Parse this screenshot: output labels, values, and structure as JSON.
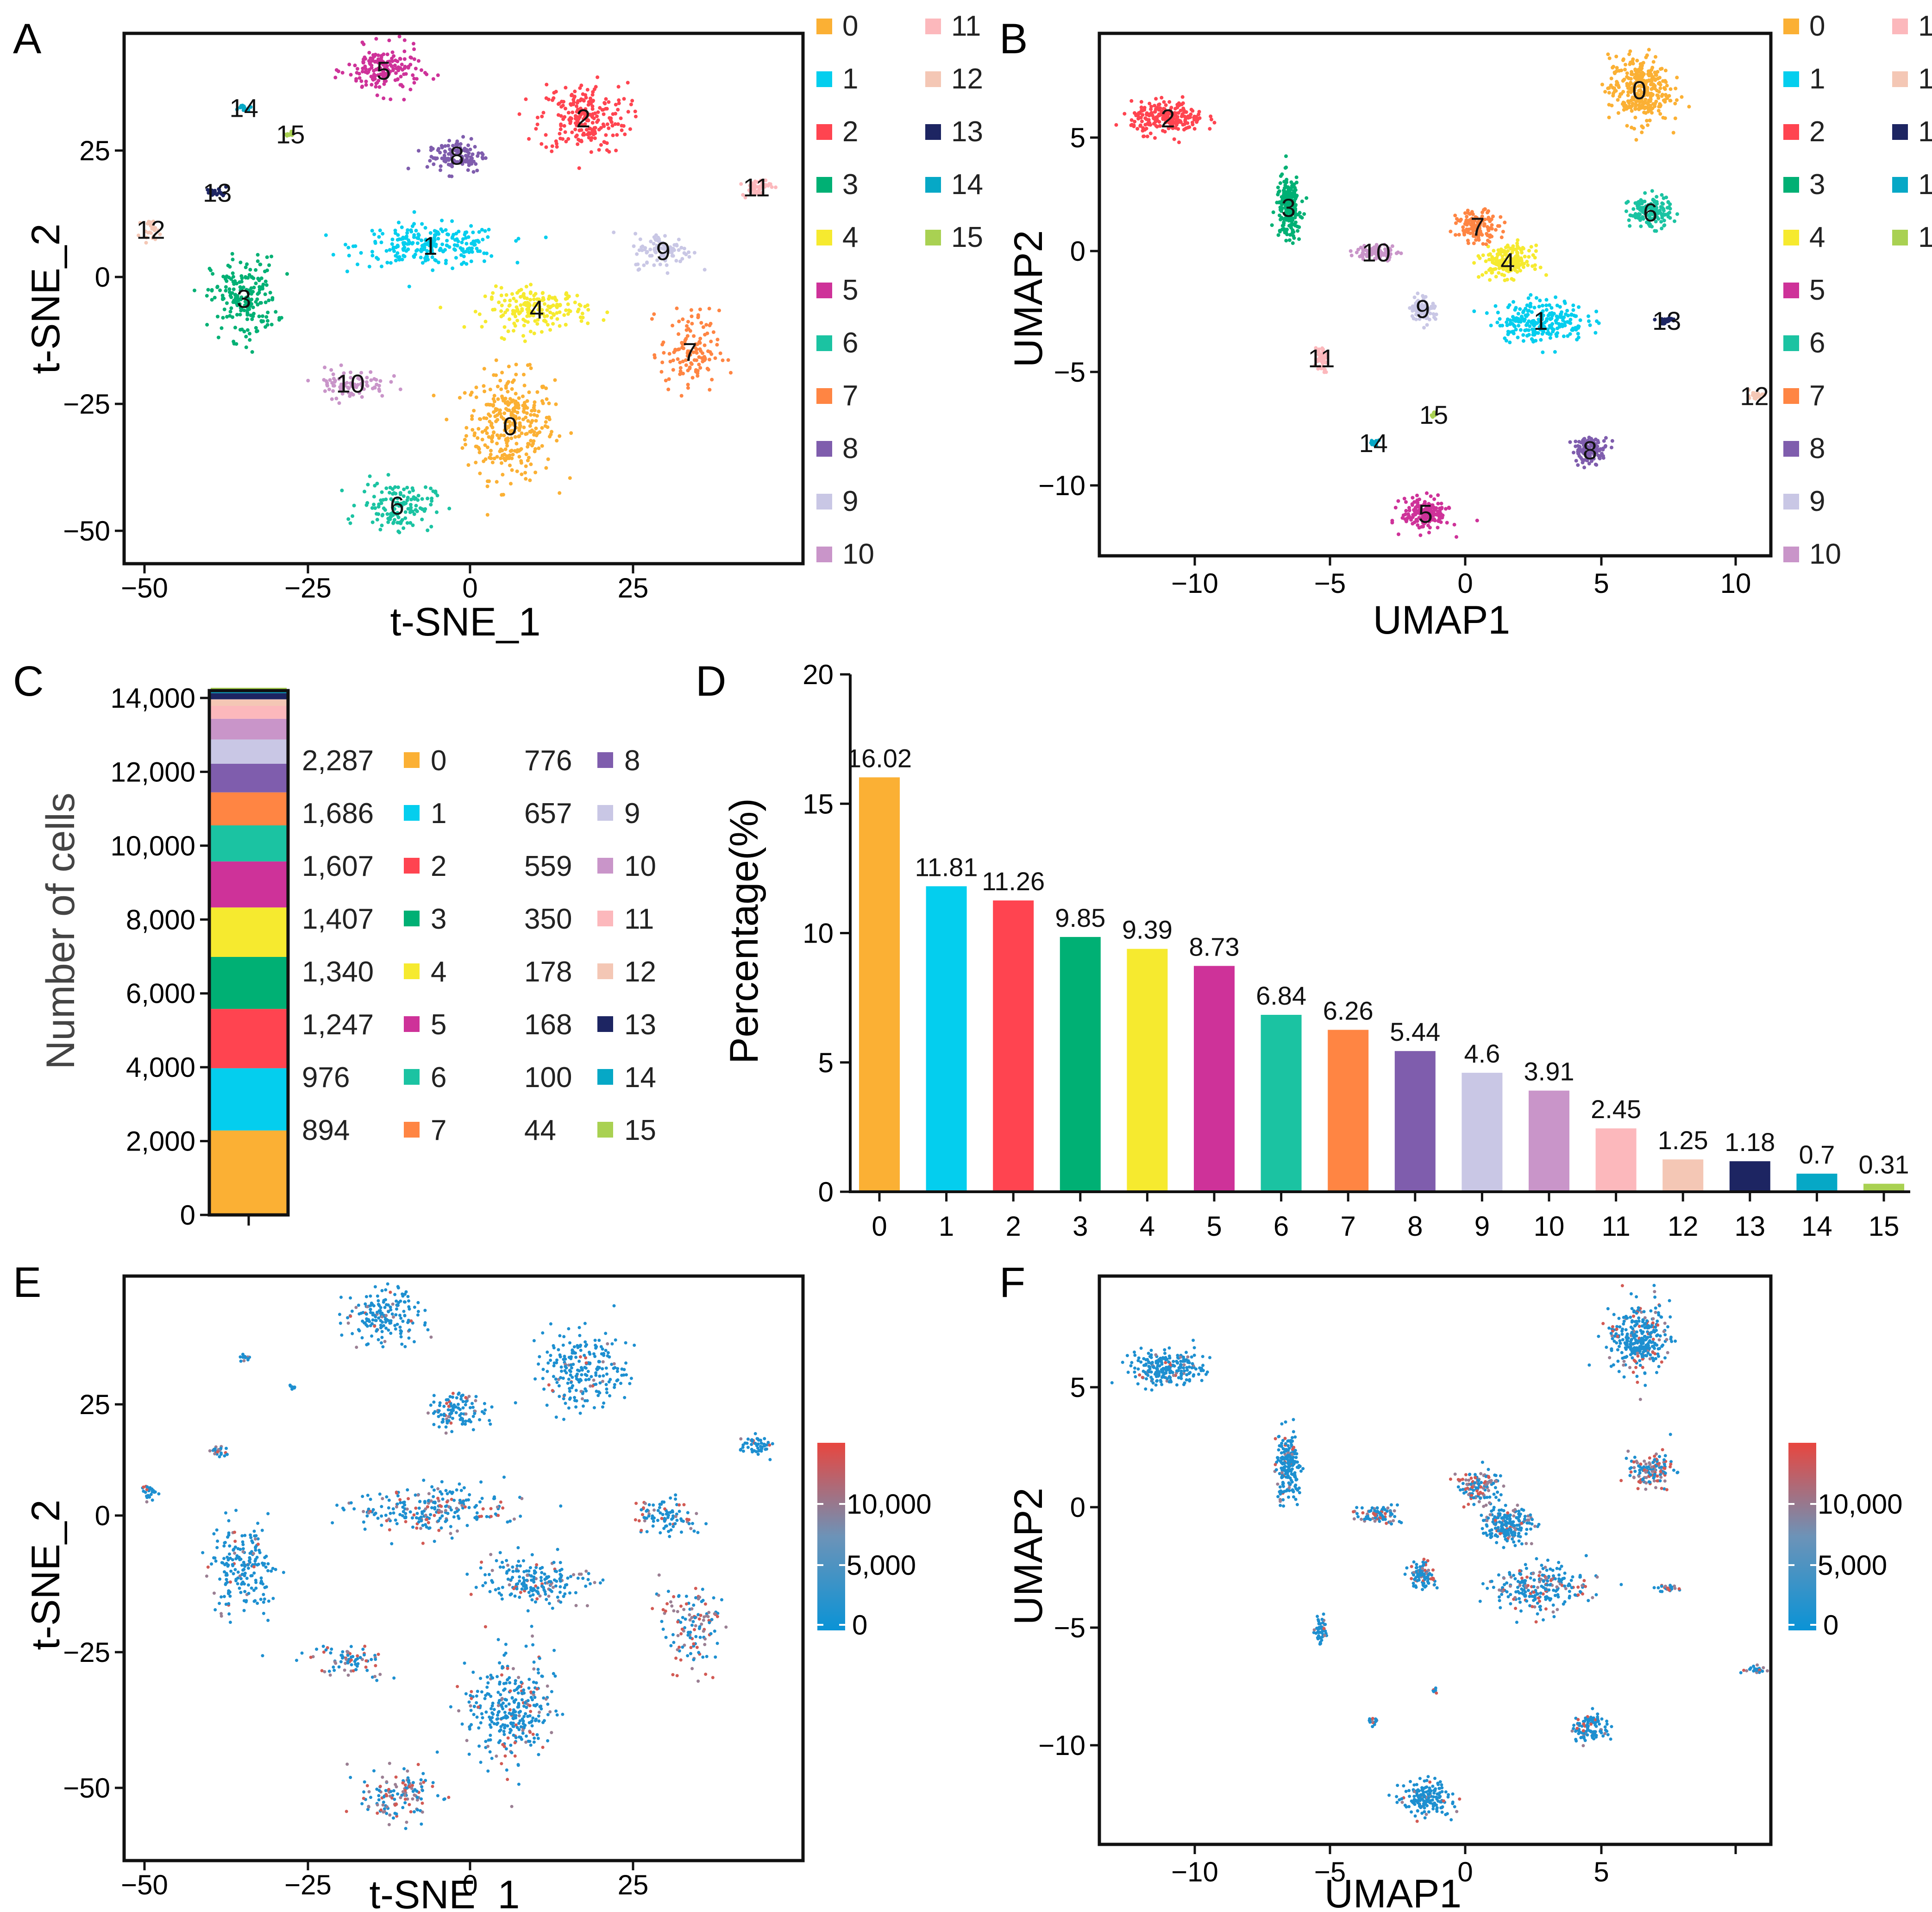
{
  "panels": {
    "A": {
      "letter": "A",
      "xlabel": "t-SNE_1",
      "ylabel": "t-SNE_2",
      "xticks": [
        "−50",
        "−25",
        "0",
        "25"
      ],
      "yticks": [
        "−50",
        "−25",
        "0",
        "25"
      ]
    },
    "B": {
      "letter": "B",
      "xlabel": "UMAP1",
      "ylabel": "UMAP2",
      "xticks": [
        "−10",
        "−5",
        "0",
        "5",
        "10"
      ],
      "yticks": [
        "−10",
        "−5",
        "0",
        "5"
      ]
    },
    "C": {
      "letter": "C",
      "ylabel": "Number of cells",
      "yticks": [
        "0",
        "2,000",
        "4,000",
        "6,000",
        "8,000",
        "10,000",
        "12,000",
        "14,000"
      ]
    },
    "D": {
      "letter": "D",
      "ylabel": "Percentage(%)",
      "yticks": [
        "0",
        "5",
        "10",
        "15",
        "20"
      ]
    },
    "E": {
      "letter": "E",
      "xlabel": "t-SNE_1",
      "ylabel": "t-SNE_2",
      "xticks": [
        "−50",
        "−25",
        "0",
        "25"
      ],
      "yticks": [
        "−50",
        "−25",
        "0",
        "25"
      ],
      "colorbar_ticks": [
        "0",
        "5,000",
        "10,000"
      ]
    },
    "F": {
      "letter": "F",
      "xlabel": "UMAP1",
      "ylabel": "UMAP2",
      "xticks": [
        "−10",
        "−5",
        "0",
        "5"
      ],
      "yticks": [
        "−10",
        "−5",
        "0",
        "5"
      ],
      "colorbar_ticks": [
        "0",
        "5,000",
        "10,000"
      ]
    }
  },
  "clusters": [
    {
      "id": "0",
      "color": "#FBB034"
    },
    {
      "id": "1",
      "color": "#04CEEE"
    },
    {
      "id": "2",
      "color": "#FF4450"
    },
    {
      "id": "3",
      "color": "#00B074"
    },
    {
      "id": "4",
      "color": "#F6EA2F"
    },
    {
      "id": "5",
      "color": "#CE3299"
    },
    {
      "id": "6",
      "color": "#1BC3A2"
    },
    {
      "id": "7",
      "color": "#FF8543"
    },
    {
      "id": "8",
      "color": "#7F5DAD"
    },
    {
      "id": "9",
      "color": "#C9C7E5"
    },
    {
      "id": "10",
      "color": "#C995C9"
    },
    {
      "id": "11",
      "color": "#FCB8BC"
    },
    {
      "id": "12",
      "color": "#F4C7B5"
    },
    {
      "id": "13",
      "color": "#1D2562"
    },
    {
      "id": "14",
      "color": "#06A8C6"
    },
    {
      "id": "15",
      "color": "#A9D152"
    }
  ],
  "gradient": {
    "low": "#0A93D6",
    "mid": "#6C93B8",
    "high": "#E8463F"
  },
  "chart_data": [
    {
      "panel": "A",
      "type": "scatter",
      "xlabel": "t-SNE_1",
      "ylabel": "t-SNE_2",
      "xlim": [
        -52,
        50
      ],
      "ylim": [
        -53,
        47
      ],
      "cluster_centers": [
        {
          "cluster": "0",
          "x": 6,
          "y": -27
        },
        {
          "cluster": "1",
          "x": -6,
          "y": 7
        },
        {
          "cluster": "2",
          "x": 17,
          "y": 31
        },
        {
          "cluster": "3",
          "x": -34,
          "y": -3
        },
        {
          "cluster": "4",
          "x": 10,
          "y": -5
        },
        {
          "cluster": "5",
          "x": -13,
          "y": 40
        },
        {
          "cluster": "6",
          "x": -11,
          "y": -42
        },
        {
          "cluster": "7",
          "x": 33,
          "y": -13
        },
        {
          "cluster": "8",
          "x": -2,
          "y": 24
        },
        {
          "cluster": "9",
          "x": 29,
          "y": 6
        },
        {
          "cluster": "10",
          "x": -18,
          "y": -19
        },
        {
          "cluster": "11",
          "x": 43,
          "y": 18
        },
        {
          "cluster": "12",
          "x": -48,
          "y": 10
        },
        {
          "cluster": "13",
          "x": -38,
          "y": 17
        },
        {
          "cluster": "14",
          "x": -34,
          "y": 33
        },
        {
          "cluster": "15",
          "x": -27,
          "y": 28
        }
      ]
    },
    {
      "panel": "B",
      "type": "scatter",
      "xlabel": "UMAP1",
      "ylabel": "UMAP2",
      "xlim": [
        -13.5,
        11
      ],
      "ylim": [
        -12.8,
        9.4
      ],
      "cluster_centers": [
        {
          "cluster": "0",
          "x": 6.2,
          "y": 7
        },
        {
          "cluster": "1",
          "x": 2.6,
          "y": -2.8
        },
        {
          "cluster": "2",
          "x": -11,
          "y": 5.8
        },
        {
          "cluster": "3",
          "x": -6.6,
          "y": 2
        },
        {
          "cluster": "4",
          "x": 1.4,
          "y": -0.3
        },
        {
          "cluster": "5",
          "x": -1.6,
          "y": -11
        },
        {
          "cluster": "6",
          "x": 6.6,
          "y": 1.8
        },
        {
          "cluster": "7",
          "x": 0.3,
          "y": 1.2
        },
        {
          "cluster": "8",
          "x": 4.4,
          "y": -8.3
        },
        {
          "cluster": "9",
          "x": -1.7,
          "y": -2.3
        },
        {
          "cluster": "10",
          "x": -3.4,
          "y": 0.1
        },
        {
          "cluster": "11",
          "x": -5.4,
          "y": -4.4
        },
        {
          "cluster": "12",
          "x": 10.4,
          "y": -6
        },
        {
          "cluster": "13",
          "x": 7.2,
          "y": -2.8
        },
        {
          "cluster": "14",
          "x": -3.5,
          "y": -8
        },
        {
          "cluster": "15",
          "x": -1.3,
          "y": -6.8
        }
      ]
    },
    {
      "panel": "C",
      "type": "bar",
      "stacked": true,
      "ylabel": "Number of cells",
      "ylim": [
        0,
        14200
      ],
      "categories": [
        "0",
        "1",
        "2",
        "3",
        "4",
        "5",
        "6",
        "7",
        "8",
        "9",
        "10",
        "11",
        "12",
        "13",
        "14",
        "15"
      ],
      "values": [
        2287,
        1686,
        1607,
        1407,
        1340,
        1247,
        976,
        894,
        776,
        657,
        559,
        350,
        178,
        168,
        100,
        44
      ],
      "value_labels": [
        "2,287",
        "1,686",
        "1,607",
        "1,407",
        "1,340",
        "1,247",
        "976",
        "894",
        "776",
        "657",
        "559",
        "350",
        "178",
        "168",
        "100",
        "44"
      ]
    },
    {
      "panel": "D",
      "type": "bar",
      "ylabel": "Percentage(%)",
      "ylim": [
        0,
        20
      ],
      "categories": [
        "0",
        "1",
        "2",
        "3",
        "4",
        "5",
        "6",
        "7",
        "8",
        "9",
        "10",
        "11",
        "12",
        "13",
        "14",
        "15"
      ],
      "values": [
        16.02,
        11.81,
        11.26,
        9.85,
        9.39,
        8.73,
        6.84,
        6.26,
        5.44,
        4.6,
        3.91,
        2.45,
        1.25,
        1.18,
        0.7,
        0.31
      ],
      "value_labels": [
        "16.02",
        "11.81",
        "11.26",
        "9.85",
        "9.39",
        "8.73",
        "6.84",
        "6.26",
        "5.44",
        "4.6",
        "3.91",
        "2.45",
        "1.25",
        "1.18",
        "0.7",
        "0.31"
      ]
    },
    {
      "panel": "E",
      "type": "scatter",
      "xlabel": "t-SNE_1",
      "ylabel": "t-SNE_2",
      "xlim": [
        -52,
        50
      ],
      "ylim": [
        -53,
        47
      ],
      "color_scale": [
        0,
        14000
      ]
    },
    {
      "panel": "F",
      "type": "scatter",
      "xlabel": "UMAP1",
      "ylabel": "UMAP2",
      "xlim": [
        -13.5,
        11
      ],
      "ylim": [
        -12.8,
        9.4
      ],
      "color_scale": [
        0,
        14000
      ]
    }
  ]
}
